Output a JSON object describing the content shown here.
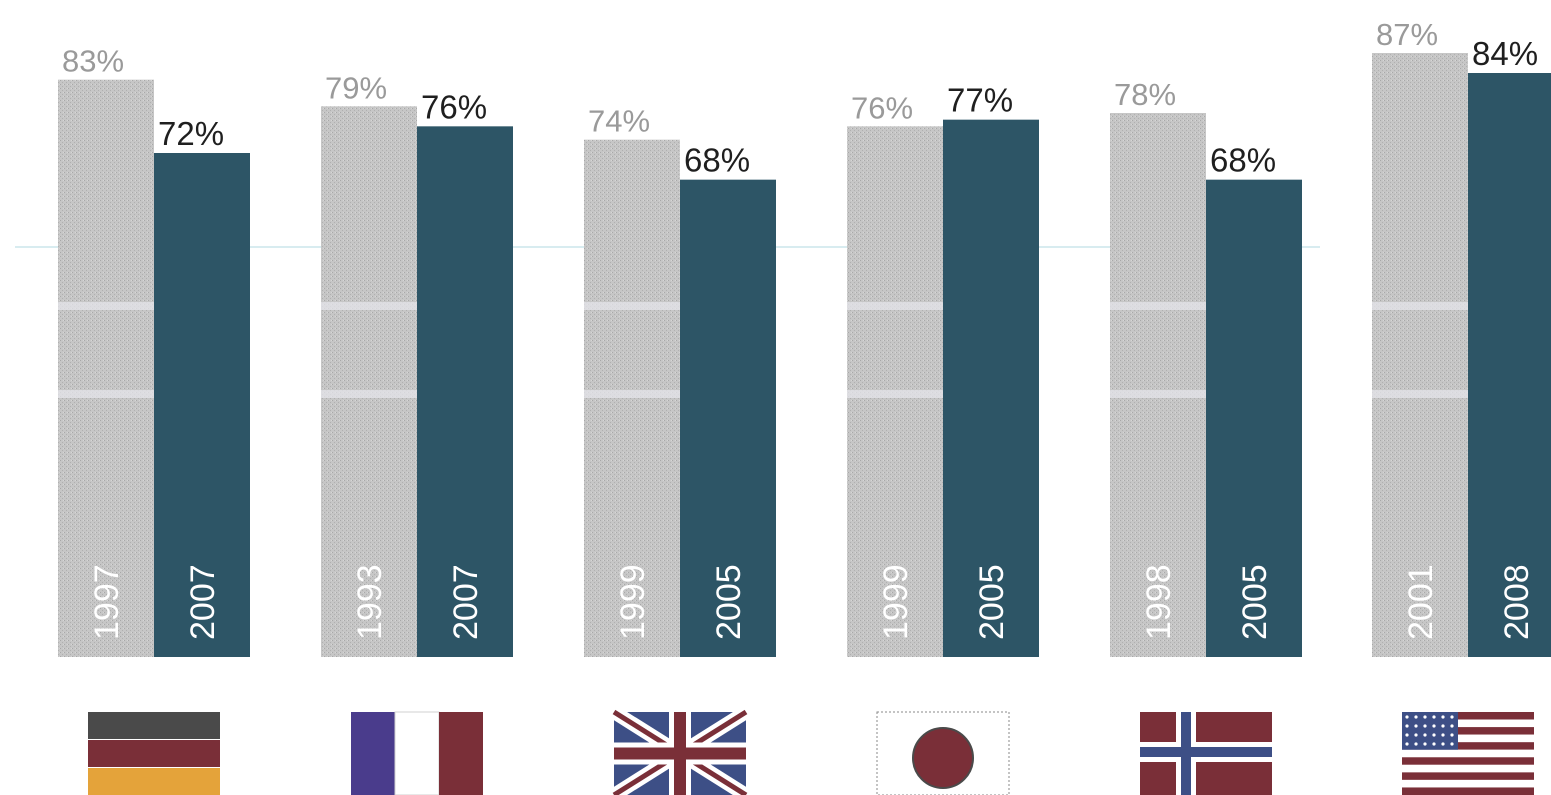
{
  "chart_data": {
    "type": "bar",
    "title": "",
    "xlabel": "",
    "ylabel": "",
    "ylim": [
      0,
      90
    ],
    "grid": false,
    "legend": "none",
    "categories": [
      "germany",
      "france",
      "united-kingdom",
      "japan",
      "norway",
      "united-states"
    ],
    "groups": [
      {
        "flag": "germany-flag-icon",
        "bars": [
          {
            "year": "1997",
            "value": 83,
            "label": "83%"
          },
          {
            "year": "2007",
            "value": 72,
            "label": "72%"
          }
        ]
      },
      {
        "flag": "france-flag-icon",
        "bars": [
          {
            "year": "1993",
            "value": 79,
            "label": "79%"
          },
          {
            "year": "2007",
            "value": 76,
            "label": "76%"
          }
        ]
      },
      {
        "flag": "uk-flag-icon",
        "bars": [
          {
            "year": "1999",
            "value": 74,
            "label": "74%"
          },
          {
            "year": "2005",
            "value": 68,
            "label": "68%"
          }
        ]
      },
      {
        "flag": "japan-flag-icon",
        "bars": [
          {
            "year": "1999",
            "value": 76,
            "label": "76%"
          },
          {
            "year": "2005",
            "value": 77,
            "label": "77%"
          }
        ]
      },
      {
        "flag": "norway-flag-icon",
        "bars": [
          {
            "year": "1998",
            "value": 78,
            "label": "78%"
          },
          {
            "year": "2005",
            "value": 68,
            "label": "68%"
          }
        ]
      },
      {
        "flag": "usa-flag-icon",
        "bars": [
          {
            "year": "2001",
            "value": 87,
            "label": "87%"
          },
          {
            "year": "2008",
            "value": 84,
            "label": "84%"
          }
        ]
      }
    ],
    "colors": {
      "earlier": "#c4c4c4",
      "later": "#2d5566"
    }
  }
}
